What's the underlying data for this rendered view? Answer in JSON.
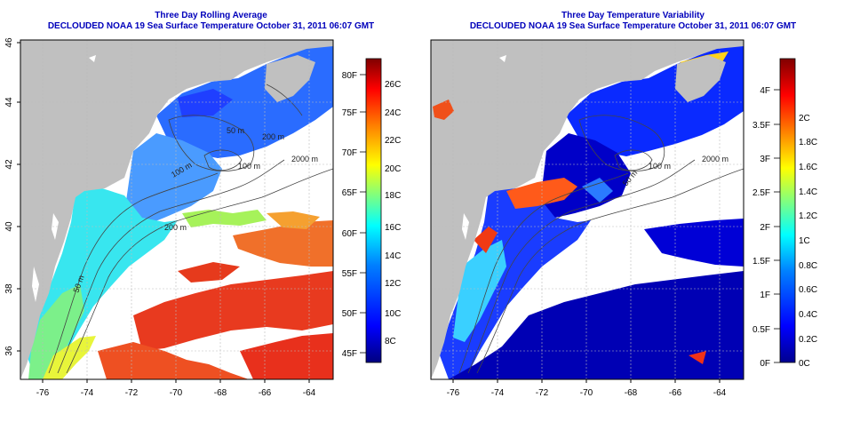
{
  "panels": [
    {
      "id": "rolling-average",
      "title": "Three Day Rolling Average",
      "subtitle": "DECLOUDED NOAA 19 Sea Surface Temperature October 31, 2011 06:07 GMT",
      "x_ticks": [
        "-76",
        "-74",
        "-72",
        "-70",
        "-68",
        "-66",
        "-64"
      ],
      "y_ticks": [
        "36",
        "38",
        "40",
        "42",
        "44",
        "46"
      ],
      "depth_labels": [
        "50 m",
        "100 m",
        "200 m",
        "2000 m",
        "100 m",
        "50 m",
        "200 m"
      ],
      "colorbar": {
        "fahrenheit": [
          "45F",
          "50F",
          "55F",
          "60F",
          "65F",
          "70F",
          "75F",
          "80F"
        ],
        "celsius": [
          "8C",
          "10C",
          "12C",
          "14C",
          "16C",
          "18C",
          "20C",
          "22C",
          "24C",
          "26C"
        ]
      }
    },
    {
      "id": "temperature-variability",
      "title": "Three Day Temperature Variability",
      "subtitle": "DECLOUDED NOAA 19 Sea Surface Temperature October 31, 2011 06:07 GMT",
      "x_ticks": [
        "-76",
        "-74",
        "-72",
        "-70",
        "-68",
        "-66",
        "-64"
      ],
      "y_ticks": [
        "36",
        "38",
        "40",
        "42",
        "44",
        "46"
      ],
      "depth_labels": [
        "100 m",
        "2000 m",
        "50 m"
      ],
      "colorbar": {
        "fahrenheit": [
          "0F",
          "0.5F",
          "1F",
          "1.5F",
          "2F",
          "2.5F",
          "3F",
          "3.5F",
          "4F"
        ],
        "celsius": [
          "0C",
          "0.2C",
          "0.4C",
          "0.6C",
          "0.8C",
          "1C",
          "1.2C",
          "1.4C",
          "1.6C",
          "1.8C",
          "2C"
        ]
      }
    }
  ],
  "colors": {
    "land": "#c0c0c0",
    "title": "#0000bb",
    "rolling_average_ramp": [
      "#00007f",
      "#0000ff",
      "#007fff",
      "#00ffff",
      "#7fff7f",
      "#ffff00",
      "#ff7f00",
      "#ff0000",
      "#7f0000"
    ],
    "variability_ramp": [
      "#00008f",
      "#0000ff",
      "#0080ff",
      "#00ffff",
      "#80ff80",
      "#ffff00",
      "#ff8000",
      "#ff0000",
      "#800000"
    ]
  }
}
